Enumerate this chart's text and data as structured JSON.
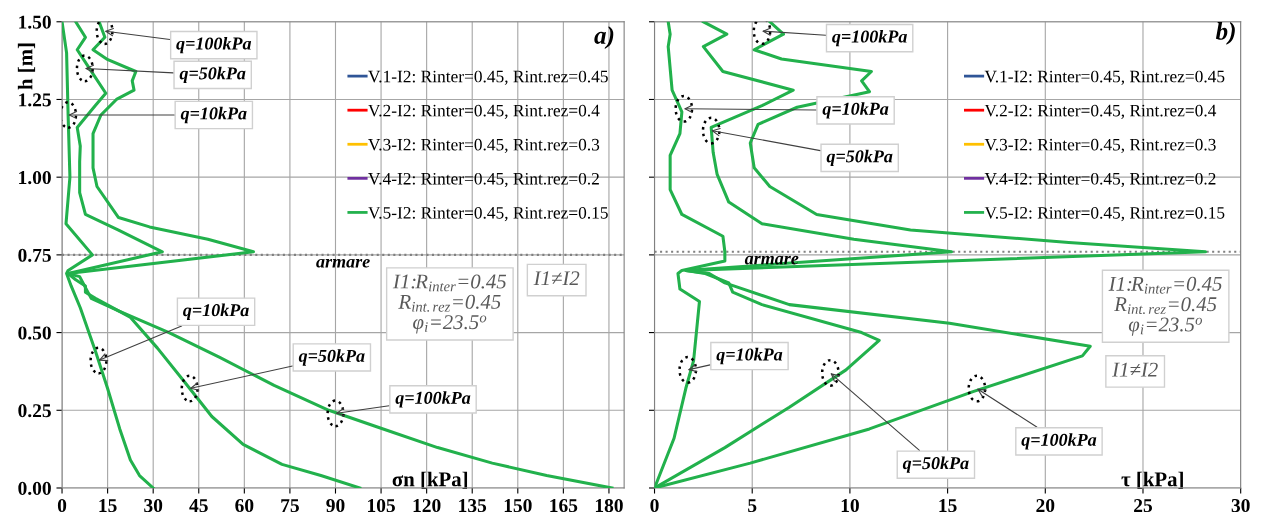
{
  "chart_data": [
    {
      "type": "line",
      "xlabel": "σn [kPa]",
      "ylabel": "h [m]",
      "xlim": [
        0,
        185
      ],
      "xticks": [
        0,
        15,
        30,
        45,
        60,
        75,
        90,
        105,
        120,
        135,
        150,
        165,
        180
      ],
      "ylim": [
        0,
        1.5
      ],
      "yticks": [
        {
          "value": 0,
          "label": "0.00"
        },
        {
          "value": 0.25,
          "label": "0.25"
        },
        {
          "value": 0.5,
          "label": "0.50"
        },
        {
          "value": 0.75,
          "label": "0.75"
        },
        {
          "value": 1.0,
          "label": "1.00"
        },
        {
          "value": 1.25,
          "label": "1.25"
        },
        {
          "value": 1.5,
          "label": "1.50"
        }
      ],
      "grid": true,
      "legend": "top right",
      "series": [
        {
          "name": "V.1-I2: Rinter=0.45, Rint.rez=0.45",
          "color": "#2f5597"
        },
        {
          "name": "V.2-I2: Rinter=0.45, Rint.rez=0.4",
          "color": "#ff0000"
        },
        {
          "name": "V.3-I2: Rinter=0.45, Rint.rez=0.3",
          "color": "#ffc000"
        },
        {
          "name": "V.4-I2: Rinter=0.45, Rint.rez=0.2",
          "color": "#7030a0"
        },
        {
          "name": "V.5-I2: Rinter=0.45, Rint.rez=0.15",
          "color": "#22b14c",
          "x": [
            0,
            1.5,
            2,
            2.6,
            1.3,
            10,
            2,
            1.5,
            3,
            6,
            11,
            15,
            19,
            22.5,
            25.5,
            30
          ],
          "values": [
            1.5,
            1.4,
            1.2,
            1.0,
            0.85,
            0.75,
            0.7,
            0.69,
            0.65,
            0.58,
            0.44,
            0.32,
            0.19,
            0.09,
            0.04,
            0
          ]
        },
        {
          "color": "#22b14c",
          "x": [
            4.5,
            7.7,
            5,
            9,
            14.4,
            10.9,
            5,
            6,
            5.8,
            5.8,
            7.7,
            18.6,
            33,
            2,
            4.5,
            7.7,
            7.7,
            11,
            22.4,
            31.4,
            40.4,
            49.3,
            59.6,
            72.4,
            85.2,
            98
          ],
          "values": [
            1.5,
            1.45,
            1.41,
            1.35,
            1.27,
            1.23,
            1.16,
            1.1,
            1.05,
            0.95,
            0.88,
            0.83,
            0.76,
            0.69,
            0.67,
            0.65,
            0.63,
            0.61,
            0.55,
            0.45,
            0.34,
            0.23,
            0.14,
            0.076,
            0.04,
            0
          ]
        },
        {
          "color": "#22b14c",
          "x": [
            12.2,
            14.1,
            10.2,
            14.7,
            24.3,
            23.1,
            23.7,
            17.9,
            12.8,
            10.2,
            10.2,
            11.5,
            18.6,
            28.8,
            48,
            63,
            2,
            5.8,
            9.6,
            18.6,
            35.2,
            51.9,
            69.8,
            87.8,
            105.7,
            123.6,
            141.6,
            159.5,
            181
          ],
          "values": [
            1.5,
            1.45,
            1.41,
            1.38,
            1.34,
            1.31,
            1.28,
            1.25,
            1.2,
            1.14,
            1.03,
            0.97,
            0.87,
            0.84,
            0.8,
            0.76,
            0.69,
            0.68,
            0.61,
            0.57,
            0.5,
            0.42,
            0.33,
            0.25,
            0.19,
            0.13,
            0.08,
            0.04,
            0
          ]
        }
      ],
      "ref_lines": [
        {
          "axis": "y",
          "value": 0.75,
          "label": "armare",
          "color": "#808080",
          "line_style": "dotted"
        }
      ],
      "annotations": [
        {
          "text": "q=100kPa",
          "x": 14,
          "y": 1.47
        },
        {
          "text": "q=50kPa",
          "x": 7.5,
          "y": 1.35
        },
        {
          "text": "q=10kPa",
          "x": 2,
          "y": 1.2
        },
        {
          "text": "q=10kPa",
          "x": 12,
          "y": 0.41
        },
        {
          "text": "q=50kPa",
          "x": 42,
          "y": 0.32
        },
        {
          "text": "q=100kPa",
          "x": 90,
          "y": 0.24
        },
        "I1:R$_{inter}$=0.45\nR$_{int.rez}$=0.45\nφ$_{i}$=23.5$^{o}$",
        "I1≠I2",
        "a)"
      ]
    },
    {
      "type": "line",
      "xlabel": "τ [kPa]",
      "xlim": [
        0,
        30
      ],
      "xticks": [
        0,
        5,
        10,
        15,
        20,
        25,
        30
      ],
      "ylim": [
        0,
        1.5
      ],
      "yticks": [
        0,
        0.25,
        0.5,
        0.75,
        1.0,
        1.25,
        1.5
      ],
      "tick_labels": "x",
      "grid": true,
      "legend": "top right",
      "series": [
        {
          "name": "V.1-I2: Rinter=0.45, Rint.rez=0.45",
          "color": "#2f5597"
        },
        {
          "name": "V.2-I2: Rinter=0.45, Rint.rez=0.4",
          "color": "#ff0000"
        },
        {
          "name": "V.3-I2: Rinter=0.45, Rint.rez=0.3",
          "color": "#ffc000"
        },
        {
          "name": "V.4-I2: Rinter=0.45, Rint.rez=0.2",
          "color": "#7030a0"
        },
        {
          "name": "V.5-I2: Rinter=0.45, Rint.rez=0.15",
          "color": "#22b14c",
          "x": [
            0.7,
            0.8,
            0.7,
            0.9,
            1.4,
            1.3,
            0.8,
            0.8,
            1.4,
            3.5,
            3.6,
            3.6,
            1.4,
            1.2,
            1.3,
            2.3,
            2.0,
            1.6,
            1.0,
            0
          ],
          "values": [
            1.5,
            1.46,
            1.42,
            1.28,
            1.21,
            1.14,
            1.07,
            0.96,
            0.88,
            0.81,
            0.76,
            0.73,
            0.7,
            0.69,
            0.64,
            0.6,
            0.41,
            0.32,
            0.16,
            0
          ]
        },
        {
          "color": "#22b14c",
          "x": [
            2.5,
            3.7,
            2.5,
            3.5,
            7.1,
            5.5,
            2.9,
            3.0,
            3.2,
            3.8,
            5.5,
            10.2,
            15.2,
            1.6,
            2.6,
            3.8,
            4.0,
            5.5,
            10.6,
            11.5,
            9.8,
            6.9,
            3.6,
            0
          ],
          "values": [
            1.5,
            1.46,
            1.42,
            1.34,
            1.28,
            1.23,
            1.16,
            1.08,
            1.01,
            0.92,
            0.85,
            0.8,
            0.76,
            0.7,
            0.69,
            0.66,
            0.63,
            0.59,
            0.5,
            0.475,
            0.38,
            0.26,
            0.13,
            0
          ]
        },
        {
          "color": "#22b14c",
          "x": [
            5.9,
            6.6,
            5.1,
            6.5,
            11.1,
            10.6,
            11.0,
            7.3,
            5.3,
            4.9,
            5.1,
            5.9,
            8.3,
            13.1,
            21.2,
            28.2,
            1.6,
            2.8,
            3.6,
            6.9,
            15.1,
            22.3,
            21.9,
            16.3,
            11.0,
            4.9,
            0
          ],
          "values": [
            1.5,
            1.46,
            1.41,
            1.38,
            1.34,
            1.31,
            1.275,
            1.225,
            1.17,
            1.11,
            1.03,
            0.97,
            0.88,
            0.83,
            0.79,
            0.76,
            0.7,
            0.69,
            0.66,
            0.59,
            0.53,
            0.456,
            0.425,
            0.31,
            0.19,
            0.08,
            0
          ]
        }
      ],
      "ref_lines": [
        {
          "axis": "y",
          "value": 0.76,
          "label": "armare",
          "color": "#808080",
          "line_style": "dotted"
        }
      ],
      "annotations": [
        {
          "text": "q=100kPa",
          "x": 5.5,
          "y": 1.47
        },
        {
          "text": "q=10kPa",
          "x": 1.5,
          "y": 1.22
        },
        {
          "text": "q=50kPa",
          "x": 2.9,
          "y": 1.15
        },
        {
          "text": "q=10kPa",
          "x": 1.7,
          "y": 0.38
        },
        {
          "text": "q=50kPa",
          "x": 9,
          "y": 0.37
        },
        {
          "text": "q=100kPa",
          "x": 16.5,
          "y": 0.32
        },
        "I1:R$_{inter}$=0.45\nR$_{int.rez}$=0.45\nφ$_{i}$=23.5$^{o}$",
        "I1≠I2",
        "b)"
      ]
    }
  ]
}
